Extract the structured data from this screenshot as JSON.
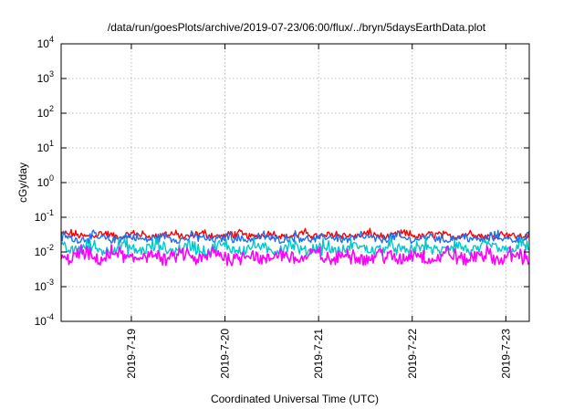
{
  "chart_data": {
    "type": "line",
    "title": "/data/run/goesPlots/archive/2019-07-23/06:00/flux/../bryn/5daysEarthData.plot",
    "xlabel": "Coordinated Universal Time (UTC)",
    "ylabel": "cGy/day",
    "yscale": "log",
    "ylim": [
      0.0001,
      10000
    ],
    "xlim": [
      "2019-7-18 06:00",
      "2019-7-23 06:00"
    ],
    "grid": true,
    "y_ticks": [
      {
        "base": "10",
        "exp": "-4"
      },
      {
        "base": "10",
        "exp": "-3"
      },
      {
        "base": "10",
        "exp": "-2"
      },
      {
        "base": "10",
        "exp": "-1"
      },
      {
        "base": "10",
        "exp": "0"
      },
      {
        "base": "10",
        "exp": "1"
      },
      {
        "base": "10",
        "exp": "2"
      },
      {
        "base": "10",
        "exp": "3"
      },
      {
        "base": "10",
        "exp": "4"
      }
    ],
    "x_ticks": [
      "2019-7-19",
      "2019-7-20",
      "2019-7-21",
      "2019-7-22",
      "2019-7-23"
    ],
    "series": [
      {
        "color": "#ff0000",
        "values_range": [
          0.02,
          0.05
        ]
      },
      {
        "color": "#1e6ff0",
        "values_range": [
          0.015,
          0.045
        ]
      },
      {
        "color": "#00c8c8",
        "values_range": [
          0.006,
          0.03
        ]
      },
      {
        "color": "#ff00ff",
        "values_range": [
          0.003,
          0.02
        ]
      }
    ]
  }
}
